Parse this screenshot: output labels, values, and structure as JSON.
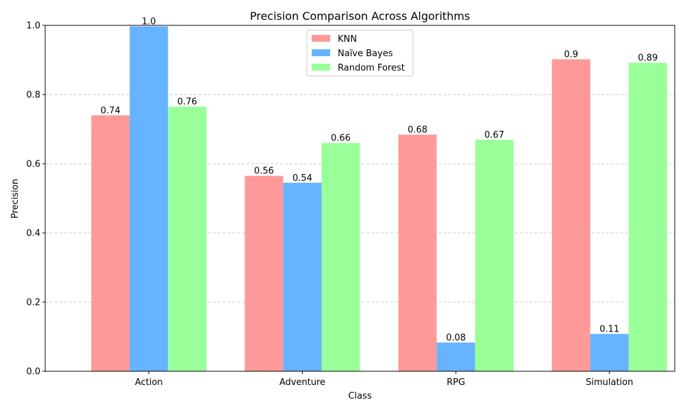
{
  "chart_data": {
    "type": "bar",
    "title": "Precision Comparison Across Algorithms",
    "xlabel": "Class",
    "ylabel": "Precision",
    "categories": [
      "Action",
      "Adventure",
      "RPG",
      "Simulation"
    ],
    "ylim": [
      0,
      1.0
    ],
    "yticks": [
      "0.0",
      "0.2",
      "0.4",
      "0.6",
      "0.8",
      "1.0"
    ],
    "grid": "y-dashed",
    "legend_position": "top-center",
    "series": [
      {
        "name": "KNN",
        "color": "#ff9999",
        "values": [
          0.74,
          0.565,
          0.684,
          0.902
        ],
        "labels": [
          "0.74",
          "0.56",
          "0.68",
          "0.9"
        ]
      },
      {
        "name": "Naïve Bayes",
        "color": "#66b3ff",
        "values": [
          0.997,
          0.545,
          0.083,
          0.108
        ],
        "labels": [
          "1.0",
          "0.54",
          "0.08",
          "0.11"
        ]
      },
      {
        "name": "Random Forest",
        "color": "#99ff99",
        "values": [
          0.765,
          0.66,
          0.669,
          0.892
        ],
        "labels": [
          "0.76",
          "0.66",
          "0.67",
          "0.89"
        ]
      }
    ]
  }
}
